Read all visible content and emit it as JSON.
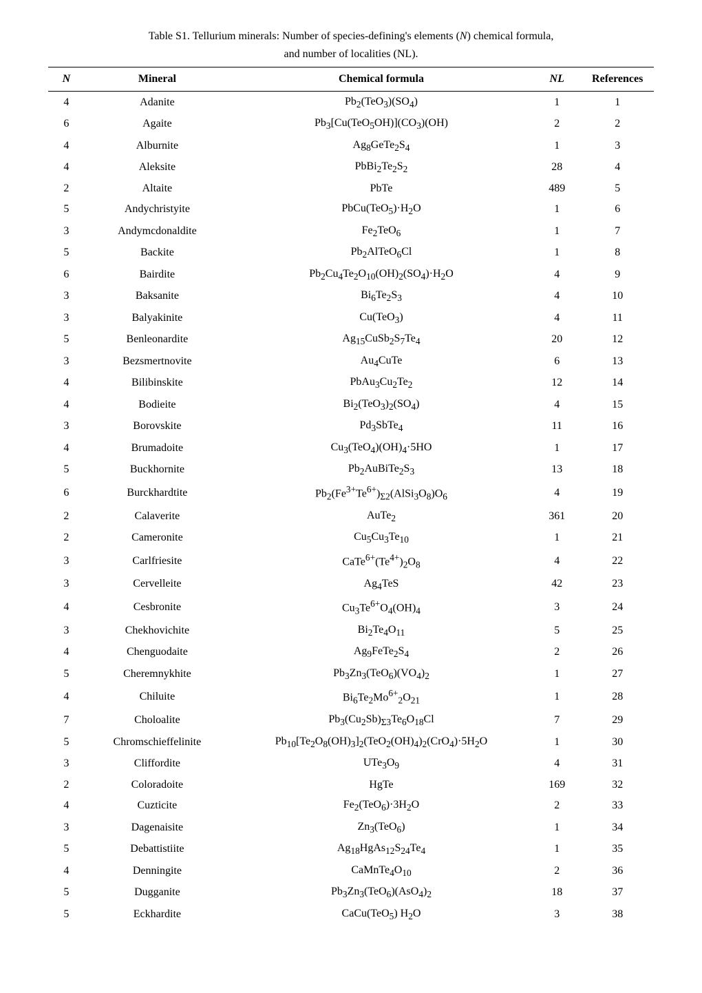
{
  "caption": {
    "line1_a": "Table S1. Tellurium minerals: Number of species-defining's elements (",
    "line1_b": ") chemical formula,",
    "n_italic": "N",
    "line2": "and number of localities (NL)."
  },
  "headers": {
    "n": "N",
    "mineral": "Mineral",
    "formula": "Chemical formula",
    "nl": "NL",
    "ref": "References"
  },
  "rows": [
    {
      "n": 4,
      "mineral": "Adanite",
      "formula": "Pb<sub>2</sub>(TeO<sub>3</sub>)(SO<sub>4</sub>)",
      "nl": 1,
      "ref": 1
    },
    {
      "n": 6,
      "mineral": "Agaite",
      "formula": "Pb<sub>3</sub>[Cu(TeO<sub>5</sub>OH)](CO<sub>3</sub>)(OH)",
      "nl": 2,
      "ref": 2
    },
    {
      "n": 4,
      "mineral": "Alburnite",
      "formula": "Ag<sub>8</sub>GeTe<sub>2</sub>S<sub>4</sub>",
      "nl": 1,
      "ref": 3
    },
    {
      "n": 4,
      "mineral": "Aleksite",
      "formula": "PbBi<sub>2</sub>Te<sub>2</sub>S<sub>2</sub>",
      "nl": 28,
      "ref": 4
    },
    {
      "n": 2,
      "mineral": "Altaite",
      "formula": "PbTe",
      "nl": 489,
      "ref": 5
    },
    {
      "n": 5,
      "mineral": "Andychristyite",
      "formula": "PbCu(TeO<sub>5</sub>)·H<sub>2</sub>O",
      "nl": 1,
      "ref": 6
    },
    {
      "n": 3,
      "mineral": "Andymcdonaldite",
      "formula": "Fe<sub>2</sub>TeO<sub>6</sub>",
      "nl": 1,
      "ref": 7
    },
    {
      "n": 5,
      "mineral": "Backite",
      "formula": "Pb<sub>2</sub>AlTeO<sub>6</sub>Cl",
      "nl": 1,
      "ref": 8
    },
    {
      "n": 6,
      "mineral": "Bairdite",
      "formula": "Pb<sub>2</sub>Cu<sub>4</sub>Te<sub>2</sub>O<sub>10</sub>(OH)<sub>2</sub>(SO<sub>4</sub>)·H<sub>2</sub>O",
      "nl": 4,
      "ref": 9
    },
    {
      "n": 3,
      "mineral": "Baksanite",
      "formula": "Bi<sub>6</sub>Te<sub>2</sub>S<sub>3</sub>",
      "nl": 4,
      "ref": 10
    },
    {
      "n": 3,
      "mineral": "Balyakinite",
      "formula": "Cu(TeO<sub>3</sub>)",
      "nl": 4,
      "ref": 11
    },
    {
      "n": 5,
      "mineral": "Benleonardite",
      "formula": "Ag<sub>15</sub>CuSb<sub>2</sub>S<sub>7</sub>Te<sub>4</sub>",
      "nl": 20,
      "ref": 12
    },
    {
      "n": 3,
      "mineral": "Bezsmertnovite",
      "formula": "Au<sub>4</sub>CuTe",
      "nl": 6,
      "ref": 13
    },
    {
      "n": 4,
      "mineral": "Bilibinskite",
      "formula": "PbAu<sub>3</sub>Cu<sub>2</sub>Te<sub>2</sub>",
      "nl": 12,
      "ref": 14
    },
    {
      "n": 4,
      "mineral": "Bodieite",
      "formula": "Bi<sub>2</sub>(TeO<sub>3</sub>)<sub>2</sub>(SO<sub>4</sub>)",
      "nl": 4,
      "ref": 15
    },
    {
      "n": 3,
      "mineral": "Borovskite",
      "formula": "Pd<sub>3</sub>SbTe<sub>4</sub>",
      "nl": 11,
      "ref": 16
    },
    {
      "n": 4,
      "mineral": "Brumadoite",
      "formula": "Cu<sub>3</sub>(TeO<sub>4</sub>)(OH)<sub>4</sub>·5HO",
      "nl": 1,
      "ref": 17
    },
    {
      "n": 5,
      "mineral": "Buckhornite",
      "formula": "Pb<sub>2</sub>AuBiTe<sub>2</sub>S<sub>3</sub>",
      "nl": 13,
      "ref": 18
    },
    {
      "n": 6,
      "mineral": "Burckhardtite",
      "formula": "Pb<sub>2</sub>(Fe<sup>3+</sup>Te<sup>6+</sup>)<sub>Σ2</sub>(AlSi<sub>3</sub>O<sub>8</sub>)O<sub>6</sub>",
      "nl": 4,
      "ref": 19
    },
    {
      "n": 2,
      "mineral": "Calaverite",
      "formula": "AuTe<sub>2</sub>",
      "nl": 361,
      "ref": 20
    },
    {
      "n": 2,
      "mineral": "Cameronite",
      "formula": "Cu<sub>5</sub>Cu<sub>3</sub>Te<sub>10</sub>",
      "nl": 1,
      "ref": 21
    },
    {
      "n": 3,
      "mineral": "Carlfriesite",
      "formula": "CaTe<sup>6+</sup>(Te<sup>4+</sup>)<sub>2</sub>O<sub>8</sub>",
      "nl": 4,
      "ref": 22
    },
    {
      "n": 3,
      "mineral": "Cervelleite",
      "formula": "Ag<sub>4</sub>TeS",
      "nl": 42,
      "ref": 23
    },
    {
      "n": 4,
      "mineral": "Cesbronite",
      "formula": "Cu<sub>3</sub>Te<sup>6+</sup>O<sub>4</sub>(OH)<sub>4</sub>",
      "nl": 3,
      "ref": 24
    },
    {
      "n": 3,
      "mineral": "Chekhovichite",
      "formula": "Bi<sub>2</sub>Te<sub>4</sub>O<sub>11</sub>",
      "nl": 5,
      "ref": 25
    },
    {
      "n": 4,
      "mineral": "Chenguodaite",
      "formula": "Ag<sub>9</sub>FeTe<sub>2</sub>S<sub>4</sub>",
      "nl": 2,
      "ref": 26
    },
    {
      "n": 5,
      "mineral": "Cheremnykhite",
      "formula": "Pb<sub>3</sub>Zn<sub>3</sub>(TeO<sub>6</sub>)(VO<sub>4</sub>)<sub>2</sub>",
      "nl": 1,
      "ref": 27
    },
    {
      "n": 4,
      "mineral": "Chiluite",
      "formula": "Bi<sub>6</sub>Te<sub>2</sub>Mo<sup>6+</sup><sub>2</sub>O<sub>21</sub>",
      "nl": 1,
      "ref": 28
    },
    {
      "n": 7,
      "mineral": "Choloalite",
      "formula": "Pb<sub>3</sub>(Cu<sub>2</sub>Sb)<sub>Σ3</sub>Te<sub>6</sub>O<sub>18</sub>Cl",
      "nl": 7,
      "ref": 29
    },
    {
      "n": 5,
      "mineral": "Chromschieffelinite",
      "formula": "Pb<sub>10</sub>[Te<sub>2</sub>O<sub>8</sub>(OH)<sub>3</sub>]<sub>2</sub>(TeO<sub>2</sub>(OH)<sub>4</sub>)<sub>2</sub>(CrO<sub>4</sub>)·5H<sub>2</sub>O",
      "nl": 1,
      "ref": 30
    },
    {
      "n": 3,
      "mineral": "Cliffordite",
      "formula": "UTe<sub>3</sub>O<sub>9</sub>",
      "nl": 4,
      "ref": 31
    },
    {
      "n": 2,
      "mineral": "Coloradoite",
      "formula": "HgTe",
      "nl": 169,
      "ref": 32
    },
    {
      "n": 4,
      "mineral": "Cuzticite",
      "formula": "Fe<sub>2</sub>(TeO<sub>6</sub>)·3H<sub>2</sub>O",
      "nl": 2,
      "ref": 33
    },
    {
      "n": 3,
      "mineral": "Dagenaisite",
      "formula": "Zn<sub>3</sub>(TeO<sub>6</sub>)",
      "nl": 1,
      "ref": 34
    },
    {
      "n": 5,
      "mineral": "Debattistiite",
      "formula": "Ag<sub>18</sub>HgAs<sub>12</sub>S<sub>24</sub>Te<sub>4</sub>",
      "nl": 1,
      "ref": 35
    },
    {
      "n": 4,
      "mineral": "Denningite",
      "formula": "CaMnTe<sub>4</sub>O<sub>10</sub>",
      "nl": 2,
      "ref": 36
    },
    {
      "n": 5,
      "mineral": "Dugganite",
      "formula": "Pb<sub>3</sub>Zn<sub>3</sub>(TeO<sub>6</sub>)(AsO<sub>4</sub>)<sub>2</sub>",
      "nl": 18,
      "ref": 37
    },
    {
      "n": 5,
      "mineral": "Eckhardite",
      "formula": "CaCu(TeO<sub>5</sub>) H<sub>2</sub>O",
      "nl": 3,
      "ref": 38
    }
  ]
}
